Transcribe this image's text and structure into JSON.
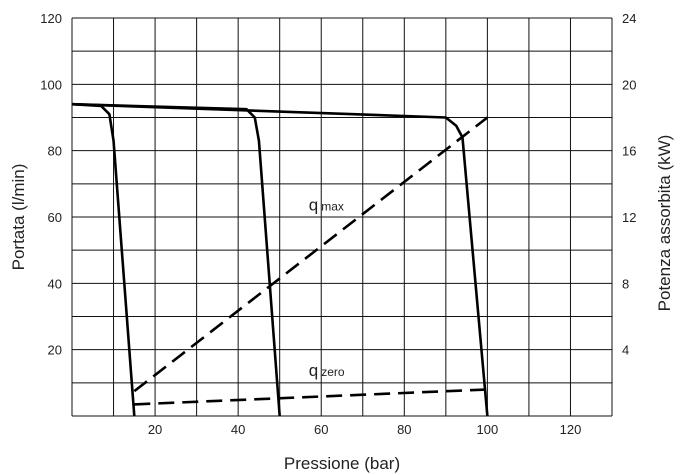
{
  "chart_data": {
    "type": "line",
    "title": "",
    "xlabel": "Pressione (bar)",
    "ylabel_left": "Portata (l/min)",
    "ylabel_right": "Potenza assorbita (kW)",
    "xlim": [
      0,
      130
    ],
    "ylim_left": [
      0,
      120
    ],
    "ylim_right": [
      0,
      24
    ],
    "x_ticks": [
      "20",
      "40",
      "60",
      "80",
      "100",
      "120"
    ],
    "y_left_ticks": [
      "20",
      "40",
      "60",
      "80",
      "100",
      "120"
    ],
    "y_right_ticks": [
      "4",
      "8",
      "12",
      "16",
      "20",
      "24"
    ],
    "grid": true,
    "series": [
      {
        "style": "solid",
        "axis": "left",
        "x": [
          0,
          7,
          9,
          10,
          15
        ],
        "y": [
          94,
          93.5,
          91,
          83,
          0
        ]
      },
      {
        "style": "solid",
        "axis": "left",
        "x": [
          0,
          42,
          44,
          45,
          50
        ],
        "y": [
          94,
          92.5,
          90,
          83,
          0
        ]
      },
      {
        "style": "solid",
        "axis": "left",
        "x": [
          0,
          90,
          92.5,
          94,
          100
        ],
        "y": [
          94,
          90,
          87.5,
          84,
          0
        ]
      },
      {
        "name": "q max",
        "style": "dashed",
        "axis": "left",
        "x": [
          15,
          100
        ],
        "y": [
          7.5,
          90
        ]
      },
      {
        "name": "q zero",
        "style": "dashed",
        "axis": "left",
        "x": [
          15,
          100
        ],
        "y": [
          3.5,
          8
        ]
      }
    ],
    "annotations": [
      {
        "main": "q",
        "sub": "max",
        "x": 57,
        "y": 62
      },
      {
        "main": "q",
        "sub": "zero",
        "x": 57,
        "y": 12
      }
    ]
  }
}
